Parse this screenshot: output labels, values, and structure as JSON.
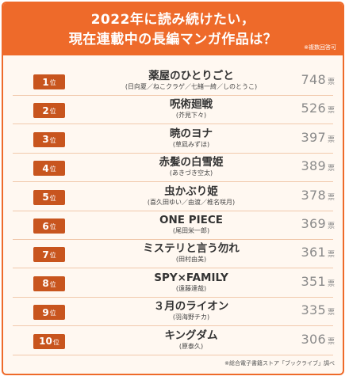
{
  "header": {
    "line1": "2022年に読み続けたい，",
    "line2": "現在連載中の長編マンガ作品は？",
    "note": "※複数回答可"
  },
  "rank_suffix": "位",
  "vote_unit": "票",
  "rankings": [
    {
      "rank": "1",
      "title": "薬屋のひとりごと",
      "author": "(日向夏／ねこクラゲ／七緒一綺／しのとうこ)",
      "votes": "748"
    },
    {
      "rank": "2",
      "title": "呪術廻戦",
      "author": "(芥見下々)",
      "votes": "526"
    },
    {
      "rank": "3",
      "title": "暁のヨナ",
      "author": "(草凪みずほ)",
      "votes": "397"
    },
    {
      "rank": "4",
      "title": "赤髪の白雪姫",
      "author": "(あきづき空太)",
      "votes": "389"
    },
    {
      "rank": "5",
      "title": "虫かぶり姫",
      "author": "(喜久田ゆい／由渡／椎名咲月)",
      "votes": "378"
    },
    {
      "rank": "6",
      "title": "ONE PIECE",
      "author": "(尾田栄一郎)",
      "votes": "369"
    },
    {
      "rank": "7",
      "title": "ミステリと言う勿れ",
      "author": "(田村由美)",
      "votes": "361"
    },
    {
      "rank": "8",
      "title": "SPY×FAMILY",
      "author": "(遠藤達哉)",
      "votes": "351"
    },
    {
      "rank": "9",
      "title": "３月のライオン",
      "author": "(羽海野チカ)",
      "votes": "335"
    },
    {
      "rank": "10",
      "title": "キングダム",
      "author": "(原泰久)",
      "votes": "306"
    }
  ],
  "footer": "※総合電子書籍ストア「ブックライブ」調べ",
  "colors": {
    "accent": "#ee6a2a",
    "rank_badge": "#c8551e",
    "background": "#fff8f1"
  }
}
